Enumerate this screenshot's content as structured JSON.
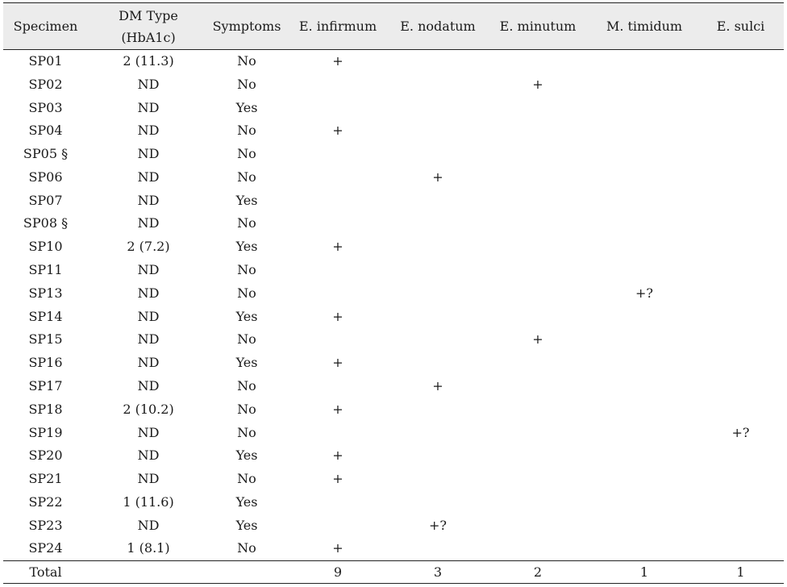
{
  "table": {
    "headers": [
      {
        "lines": [
          "Specimen"
        ]
      },
      {
        "lines": [
          "DM Type",
          "(HbA1c)"
        ]
      },
      {
        "lines": [
          "Symptoms"
        ]
      },
      {
        "lines": [
          "E. infirmum"
        ]
      },
      {
        "lines": [
          "E. nodatum"
        ]
      },
      {
        "lines": [
          "E. minutum"
        ]
      },
      {
        "lines": [
          "M. timidum"
        ]
      },
      {
        "lines": [
          "E. sulci"
        ]
      }
    ],
    "rows": [
      [
        "SP01",
        "2 (11.3)",
        "No",
        "+",
        "",
        "",
        "",
        ""
      ],
      [
        "SP02",
        "ND",
        "No",
        "",
        "",
        "+",
        "",
        ""
      ],
      [
        "SP03",
        "ND",
        "Yes",
        "",
        "",
        "",
        "",
        ""
      ],
      [
        "SP04",
        "ND",
        "No",
        "+",
        "",
        "",
        "",
        ""
      ],
      [
        "SP05 §",
        "ND",
        "No",
        "",
        "",
        "",
        "",
        ""
      ],
      [
        "SP06",
        "ND",
        "No",
        "",
        "+",
        "",
        "",
        ""
      ],
      [
        "SP07",
        "ND",
        "Yes",
        "",
        "",
        "",
        "",
        ""
      ],
      [
        "SP08 §",
        "ND",
        "No",
        "",
        "",
        "",
        "",
        ""
      ],
      [
        "SP10",
        "2 (7.2)",
        "Yes",
        "+",
        "",
        "",
        "",
        ""
      ],
      [
        "SP11",
        "ND",
        "No",
        "",
        "",
        "",
        "",
        ""
      ],
      [
        "SP13",
        "ND",
        "No",
        "",
        "",
        "",
        "+?",
        ""
      ],
      [
        "SP14",
        "ND",
        "Yes",
        "+",
        "",
        "",
        "",
        ""
      ],
      [
        "SP15",
        "ND",
        "No",
        "",
        "",
        "+",
        "",
        ""
      ],
      [
        "SP16",
        "ND",
        "Yes",
        "+",
        "",
        "",
        "",
        ""
      ],
      [
        "SP17",
        "ND",
        "No",
        "",
        "+",
        "",
        "",
        ""
      ],
      [
        "SP18",
        "2 (10.2)",
        "No",
        "+",
        "",
        "",
        "",
        ""
      ],
      [
        "SP19",
        "ND",
        "No",
        "",
        "",
        "",
        "",
        "+?"
      ],
      [
        "SP20",
        "ND",
        "Yes",
        "+",
        "",
        "",
        "",
        ""
      ],
      [
        "SP21",
        "ND",
        "No",
        "+",
        "",
        "",
        "",
        ""
      ],
      [
        "SP22",
        "1 (11.6)",
        "Yes",
        "",
        "",
        "",
        "",
        ""
      ],
      [
        "SP23",
        "ND",
        "Yes",
        "",
        "+?",
        "",
        "",
        ""
      ],
      [
        "SP24",
        "1 (8.1)",
        "No",
        "+",
        "",
        "",
        "",
        ""
      ]
    ],
    "footer": [
      "Total",
      "",
      "",
      "9",
      "3",
      "2",
      "1",
      "1"
    ]
  },
  "colors": {
    "header_background": "#ececec",
    "rule": "#222222",
    "text": "#1a1a1a"
  }
}
